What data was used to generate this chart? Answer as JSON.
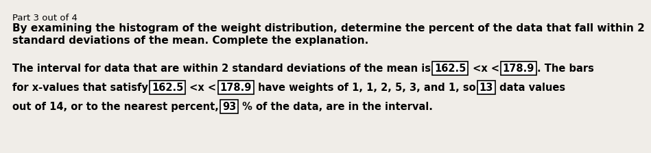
{
  "part_label": "Part 3 out of 4",
  "title_line1": "By examining the histogram of the weight distribution, determine the percent of the data that fall within 2",
  "title_line2": "standard deviations of the mean. Complete the explanation.",
  "line1_p1": "The interval for data that are within 2 standard deviations of the mean is ",
  "box1": "162.5",
  "line1_p2": " <x < ",
  "box2": "178.9",
  "line1_p3": ". The bars",
  "line2_p1": "for x-values that satisfy ",
  "box3": "162.5",
  "line2_p2": " <x < ",
  "box4": "178.9",
  "line2_p3": " have weights of 1, 1, 2, 5, 3, and 1, so ",
  "box5": "13",
  "line2_p4": " data values",
  "line3_p1": "out of 14, or to the nearest percent, ",
  "box6": "93",
  "line3_p2": " % of the data, are in the interval.",
  "bg_color": "#f0ede8",
  "text_color": "#000000",
  "box_color": "#ffffff",
  "fs_label": 9.5,
  "fs_title": 11.0,
  "fs_body": 10.5
}
